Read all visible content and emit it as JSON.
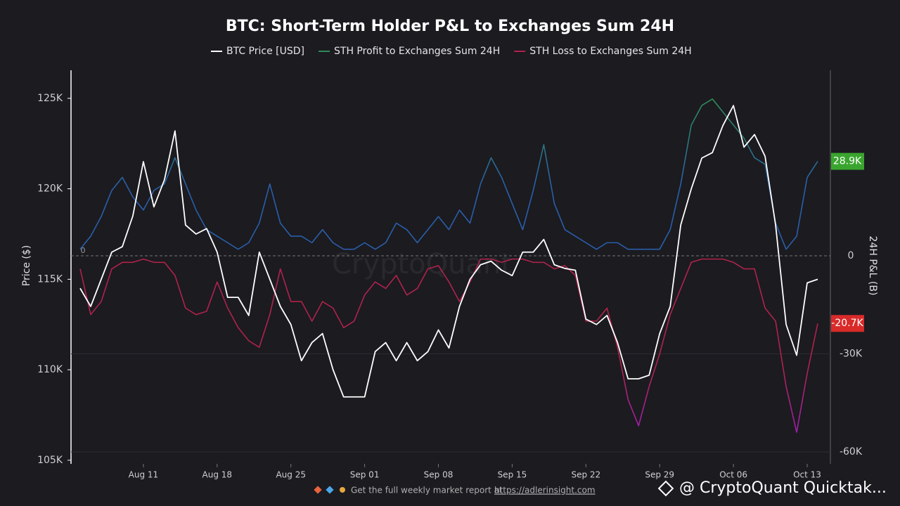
{
  "chart_data": {
    "type": "line",
    "title": "BTC: Short-Term Holder P&L to Exchanges Sum 24H",
    "ylabel": "Price ($)",
    "y2label": "24H P&L (B)",
    "watermark": "CryptoQuant",
    "footer_text": "Get the full weekly market report at",
    "footer_link": "https://adlerinsight.com",
    "credit": "@ CryptoQuant Quicktak...",
    "categories": [
      "Aug 05",
      "Aug 06",
      "Aug 07",
      "Aug 08",
      "Aug 09",
      "Aug 10",
      "Aug 11",
      "Aug 12",
      "Aug 13",
      "Aug 14",
      "Aug 15",
      "Aug 16",
      "Aug 17",
      "Aug 18",
      "Aug 19",
      "Aug 20",
      "Aug 21",
      "Aug 22",
      "Aug 23",
      "Aug 24",
      "Aug 25",
      "Aug 26",
      "Aug 27",
      "Aug 28",
      "Aug 29",
      "Aug 30",
      "Aug 31",
      "Sep 01",
      "Sep 02",
      "Sep 03",
      "Sep 04",
      "Sep 05",
      "Sep 06",
      "Sep 07",
      "Sep 08",
      "Sep 09",
      "Sep 10",
      "Sep 11",
      "Sep 12",
      "Sep 13",
      "Sep 14",
      "Sep 15",
      "Sep 16",
      "Sep 17",
      "Sep 18",
      "Sep 19",
      "Sep 20",
      "Sep 21",
      "Sep 22",
      "Sep 23",
      "Sep 24",
      "Sep 25",
      "Sep 26",
      "Sep 27",
      "Sep 28",
      "Sep 29",
      "Sep 30",
      "Oct 01",
      "Oct 02",
      "Oct 03",
      "Oct 04",
      "Oct 05",
      "Oct 06",
      "Oct 07",
      "Oct 08",
      "Oct 09",
      "Oct 10",
      "Oct 11",
      "Oct 12",
      "Oct 13",
      "Oct 14"
    ],
    "xticks": [
      "Aug 11",
      "Aug 18",
      "Aug 25",
      "Sep 01",
      "Sep 08",
      "Sep 15",
      "Sep 22",
      "Sep 29",
      "Oct 06",
      "Oct 13"
    ],
    "ylim": [
      104800,
      126550
    ],
    "yticks": [
      {
        "value": 105000,
        "label": "105K"
      },
      {
        "value": 110000,
        "label": "110K"
      },
      {
        "value": 115000,
        "label": "115K"
      },
      {
        "value": 120000,
        "label": "120K"
      },
      {
        "value": 125000,
        "label": "125K"
      }
    ],
    "y2lim": [
      -63660,
      56770
    ],
    "y2ticks": [
      {
        "value": -60000,
        "label": "-60K"
      },
      {
        "value": -30000,
        "label": "-30K"
      },
      0
    ],
    "grid": true,
    "series": [
      {
        "name": "BTC Price [USD]",
        "color": "#ffffff",
        "axis": "y",
        "values": [
          114500,
          113500,
          115000,
          116500,
          116800,
          118500,
          121500,
          119000,
          120500,
          123200,
          118000,
          117500,
          117800,
          116500,
          114000,
          114000,
          113000,
          116500,
          115000,
          113500,
          112500,
          110500,
          111500,
          112000,
          110000,
          108500,
          108500,
          108500,
          111000,
          111500,
          110500,
          111500,
          110500,
          111000,
          112200,
          111200,
          113500,
          115000,
          115800,
          116000,
          115500,
          115200,
          116500,
          116500,
          117200,
          115800,
          115600,
          115500,
          112800,
          112500,
          113000,
          111500,
          109500,
          109500,
          109700,
          112000,
          113500,
          118000,
          120000,
          121700,
          122000,
          123500,
          124600,
          122300,
          123000,
          121800,
          118000,
          112500,
          110800,
          114800,
          115000
        ]
      },
      {
        "name": "STH Profit to Exchanges Sum 24H",
        "color": "#2e8b57",
        "axis": "y2",
        "last_label": "28.9K",
        "values": [
          2000,
          6000,
          12000,
          20000,
          24000,
          18000,
          14000,
          20000,
          22000,
          30000,
          22000,
          14000,
          8000,
          6000,
          4000,
          2000,
          4000,
          10000,
          22000,
          10000,
          6000,
          6000,
          4000,
          8000,
          4000,
          2000,
          2000,
          4000,
          2000,
          4000,
          10000,
          8000,
          4000,
          8000,
          12000,
          8000,
          14000,
          10000,
          22000,
          30000,
          24000,
          16000,
          8000,
          20000,
          34000,
          16000,
          8000,
          6000,
          4000,
          2000,
          4000,
          4000,
          2000,
          2000,
          2000,
          2000,
          8000,
          22000,
          40000,
          46000,
          48000,
          44000,
          40000,
          36000,
          30000,
          28000,
          10000,
          2000,
          6000,
          24000,
          28900
        ]
      },
      {
        "name": "STH Loss to Exchanges Sum 24H",
        "color": "#b0224a",
        "axis": "y2",
        "last_label": "-20.7K",
        "values": [
          -4000,
          -18000,
          -14000,
          -4000,
          -2000,
          -2000,
          -1000,
          -2000,
          -2000,
          -6000,
          -16000,
          -18000,
          -17000,
          -8000,
          -16000,
          -22000,
          -26000,
          -28000,
          -18000,
          -4000,
          -14000,
          -14000,
          -20000,
          -14000,
          -16000,
          -22000,
          -20000,
          -12000,
          -8000,
          -10000,
          -6000,
          -12000,
          -10000,
          -4000,
          -3000,
          -8000,
          -14000,
          -8000,
          -1000,
          -1000,
          -2000,
          -1000,
          -1000,
          -2000,
          -2000,
          -4000,
          -3000,
          -6000,
          -20000,
          -20000,
          -16000,
          -28000,
          -44000,
          -52000,
          -40000,
          -30000,
          -18000,
          -10000,
          -2000,
          -1000,
          -1000,
          -1000,
          -2000,
          -4000,
          -4000,
          -16000,
          -20000,
          -40000,
          -54000,
          -36000,
          -20700
        ]
      }
    ]
  }
}
